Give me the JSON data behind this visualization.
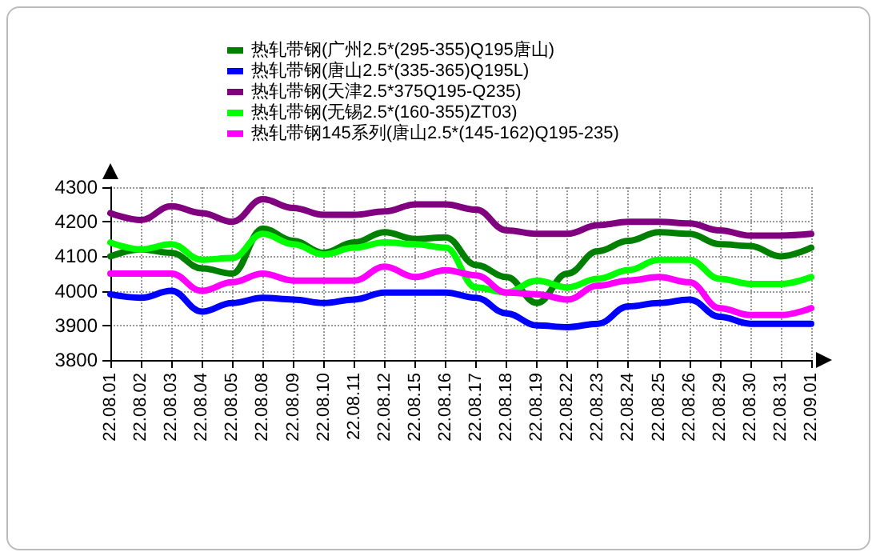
{
  "chart_data": {
    "type": "line",
    "categories": [
      "22.08.01",
      "22.08.02",
      "22.08.03",
      "22.08.04",
      "22.08.05",
      "22.08.08",
      "22.08.09",
      "22.08.10",
      "22.08.11",
      "22.08.12",
      "22.08.15",
      "22.08.16",
      "22.08.17",
      "22.08.18",
      "22.08.19",
      "22.08.22",
      "22.08.23",
      "22.08.24",
      "22.08.25",
      "22.08.26",
      "22.08.29",
      "22.08.30",
      "22.08.31",
      "22.09.01"
    ],
    "series": [
      {
        "name": "热轧带钢(广州2.5*(295-355)Q195唐山)",
        "color": "#008000",
        "values": [
          4100,
          4120,
          4110,
          4065,
          4050,
          4180,
          4145,
          4110,
          4140,
          4170,
          4150,
          4155,
          4075,
          4040,
          3965,
          4050,
          4115,
          4145,
          4170,
          4165,
          4135,
          4130,
          4100,
          4125
        ]
      },
      {
        "name": "热轧带钢(唐山2.5*(335-365)Q195L)",
        "color": "#0000ff",
        "values": [
          3990,
          3980,
          4000,
          3940,
          3965,
          3980,
          3975,
          3965,
          3975,
          3995,
          3995,
          3995,
          3980,
          3935,
          3900,
          3895,
          3905,
          3955,
          3965,
          3975,
          3925,
          3905,
          3905,
          3905
        ]
      },
      {
        "name": "热轧带钢(天津2.5*375Q195-Q235)",
        "color": "#800080",
        "values": [
          4225,
          4205,
          4245,
          4225,
          4200,
          4265,
          4240,
          4220,
          4220,
          4230,
          4250,
          4250,
          4235,
          4175,
          4165,
          4165,
          4190,
          4200,
          4200,
          4195,
          4175,
          4160,
          4160,
          4165
        ]
      },
      {
        "name": "热轧带钢(无锡2.5*(160-355)ZT03)",
        "color": "#00ff00",
        "values": [
          4140,
          4120,
          4135,
          4090,
          4095,
          4165,
          4135,
          4105,
          4125,
          4140,
          4135,
          4125,
          4010,
          3995,
          4030,
          4010,
          4035,
          4060,
          4090,
          4090,
          4035,
          4020,
          4020,
          4040
        ]
      },
      {
        "name": "热轧带钢145系列(唐山2.5*(145-162)Q195-235)",
        "color": "#ff00ff",
        "values": [
          4050,
          4050,
          4050,
          4000,
          4025,
          4050,
          4030,
          4030,
          4030,
          4070,
          4040,
          4060,
          4045,
          3995,
          3990,
          3975,
          4015,
          4030,
          4040,
          4025,
          3950,
          3930,
          3930,
          3950
        ]
      }
    ],
    "ylim": [
      3800,
      4300
    ],
    "yticks": [
      3800,
      3900,
      4000,
      4100,
      4200,
      4300
    ],
    "grid": true,
    "legend": "top",
    "marker": "none",
    "line_style": "solid"
  }
}
